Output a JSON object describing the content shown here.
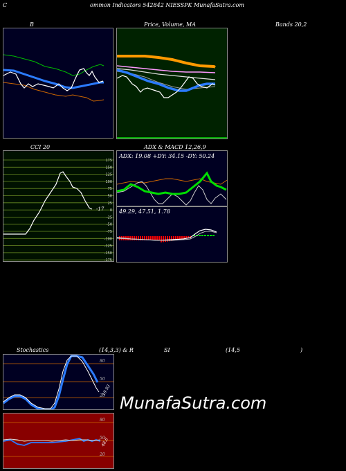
{
  "header": {
    "c": "C",
    "title": "ommon  Indicators 542842  NIESSPK MunafaSutra.com"
  },
  "titles": {
    "b": "B",
    "price": "Price,  Volume,  MA",
    "bands": "Bands 20,2",
    "cci": "CCI 20",
    "adx_macd": "ADX  & MACD 12,26,9",
    "stoch": "Stochastics",
    "stoch_params": "(14,3,3) & R",
    "si": "SI",
    "rsi_params": "(14,5",
    "close_paren": ")"
  },
  "cci": {
    "ticks": [
      "175",
      "150",
      "125",
      "100",
      "75",
      "50",
      "25",
      "0",
      "-25",
      "-50",
      "-75",
      "-100",
      "-125",
      "-150",
      "-175"
    ],
    "current": "-17"
  },
  "adx": {
    "readout": "ADX: 19.08  +DY: 34.15 -DY: 50.24"
  },
  "macd": {
    "readout": "49.29,  47.51,  1.78"
  },
  "stoch": {
    "ticks": [
      "80",
      "50",
      "20"
    ],
    "current": "19.93"
  },
  "rsi": {
    "ticks": [
      "80",
      "50",
      "20"
    ],
    "current": "48.6"
  },
  "watermark": "MunafaSutra.com",
  "colors": {
    "navy": "#000022",
    "green_panel": "#002200",
    "cci_bg": "#001100",
    "cci_line": "#6b8e23",
    "rsi_bg": "#880000",
    "blue": "#2b7bff",
    "orange": "#cc6600",
    "bright_green": "#00dd00",
    "red": "#ff0000"
  }
}
